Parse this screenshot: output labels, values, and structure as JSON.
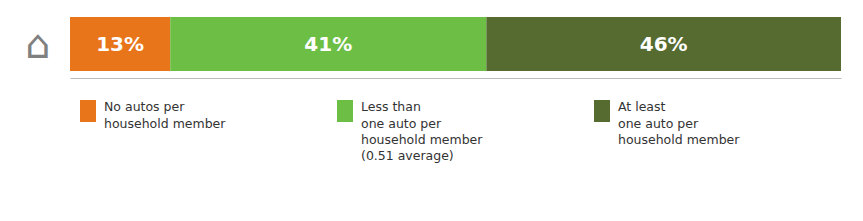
{
  "chart_data": {
    "type": "bar",
    "orientation": "horizontal",
    "stacked": true,
    "data_labels": true,
    "tick_labels": false,
    "categories": [
      null
    ],
    "series": [
      {
        "name": "No autos per\nhousehold member",
        "color": "#E8751A",
        "values": [
          13
        ],
        "value_labels": [
          "13%"
        ]
      },
      {
        "name": "Less than\none auto per\nhousehold member\n(0.51 average)",
        "color": "#6DBE45",
        "values": [
          41
        ],
        "value_labels": [
          "41%"
        ]
      },
      {
        "name": "At least\none auto per\nhousehold member",
        "color": "#556B2F",
        "values": [
          46
        ],
        "value_labels": [
          "46%"
        ]
      }
    ],
    "xlim": [
      0,
      100
    ],
    "annotations": [
      {
        "text": "⌂"
      }
    ]
  }
}
